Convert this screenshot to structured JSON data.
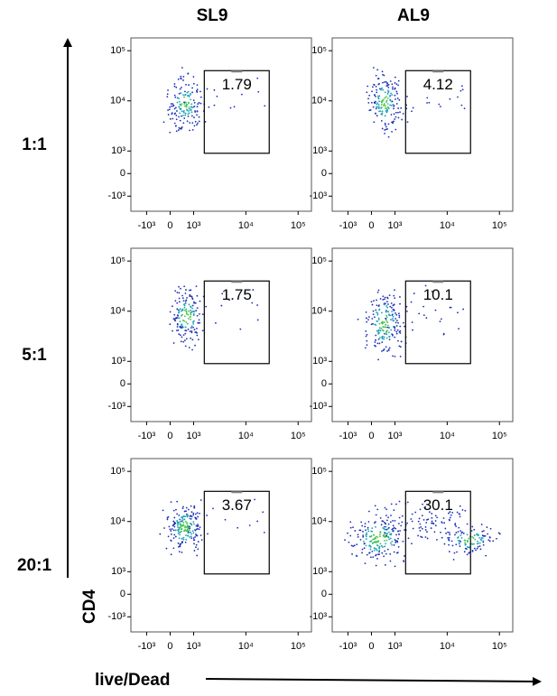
{
  "chart_data": {
    "type": "scatter",
    "column_labels": [
      "SL9",
      "AL9"
    ],
    "row_labels": [
      "1:1",
      "5:1",
      "20:1"
    ],
    "x_label": "live/Dead",
    "y_label": "CD4",
    "xlim": [
      -2000,
      180000
    ],
    "ylim": [
      -2000,
      180000
    ],
    "xticks": [
      {
        "value": -1000,
        "label": "-10³"
      },
      0,
      {
        "value": 1000,
        "label": "10³"
      },
      {
        "value": 10000,
        "label": "10⁴"
      },
      {
        "value": 100000,
        "label": "10⁵"
      }
    ],
    "yticks": [
      {
        "value": -1000,
        "label": "-10³"
      },
      0,
      {
        "value": 1000,
        "label": "10³"
      },
      {
        "value": 10000,
        "label": "10⁴"
      },
      {
        "value": 100000,
        "label": "10⁵"
      }
    ],
    "gate": {
      "x": [
        1600,
        28000
      ],
      "y": [
        900,
        40000
      ]
    },
    "panels": [
      {
        "row": 0,
        "col": 0,
        "gate_value": 1.79
      },
      {
        "row": 0,
        "col": 1,
        "gate_value": 4.12
      },
      {
        "row": 1,
        "col": 0,
        "gate_value": 1.75
      },
      {
        "row": 1,
        "col": 1,
        "gate_value": 10.1
      },
      {
        "row": 2,
        "col": 0,
        "gate_value": 3.67
      },
      {
        "row": 2,
        "col": 1,
        "gate_value": 30.1
      }
    ]
  }
}
